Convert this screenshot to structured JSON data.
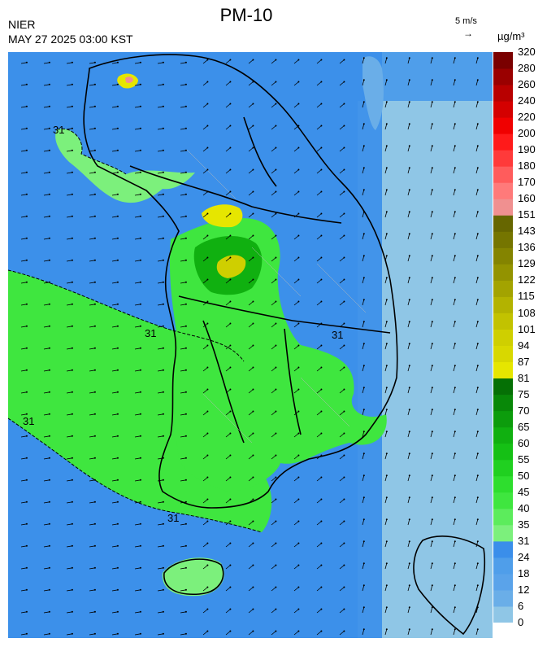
{
  "header": {
    "org": "NIER",
    "timestamp": "MAY 27 2025 03:00 KST",
    "title": "PM-10",
    "ref_vector": "5 m/s",
    "ref_arrow": "→",
    "unit": "µg/m³"
  },
  "map": {
    "contour_label": "31",
    "colors": {
      "pm_6": "#8fc6e6",
      "pm_12": "#6aaee8",
      "pm_18": "#4f9eea",
      "pm_24": "#3a8eea",
      "pm_31": "#7cf07c",
      "pm_40": "#3fe63f",
      "pm_50": "#20d020",
      "pm_60": "#10b010",
      "pm_81": "#e6e600",
      "pm_94": "#cfcf00",
      "pm_151": "#f09090",
      "border": "#000000",
      "district": "#b8b8b8"
    }
  },
  "legend": {
    "levels": [
      "0",
      "6",
      "12",
      "18",
      "24",
      "31",
      "35",
      "40",
      "45",
      "50",
      "55",
      "60",
      "65",
      "70",
      "75",
      "81",
      "87",
      "94",
      "101",
      "108",
      "115",
      "122",
      "129",
      "136",
      "143",
      "151",
      "160",
      "170",
      "180",
      "190",
      "200",
      "220",
      "240",
      "260",
      "280",
      "320"
    ],
    "colors": [
      "#8fc6e6",
      "#6aaee8",
      "#5aa3ea",
      "#4f9eea",
      "#3a8eea",
      "#7cf07c",
      "#5cec5c",
      "#3fe63f",
      "#2ede2e",
      "#20d020",
      "#15c015",
      "#10b010",
      "#0c9c0c",
      "#088808",
      "#057005",
      "#e6e600",
      "#d8d800",
      "#cfcf00",
      "#c2c200",
      "#b3b300",
      "#a3a300",
      "#939300",
      "#848400",
      "#757500",
      "#666600",
      "#f09090",
      "#ff7a7a",
      "#ff5c5c",
      "#ff3a3a",
      "#ff1a1a",
      "#f00000",
      "#d40000",
      "#b80000",
      "#9a0000",
      "#7a0000"
    ]
  }
}
